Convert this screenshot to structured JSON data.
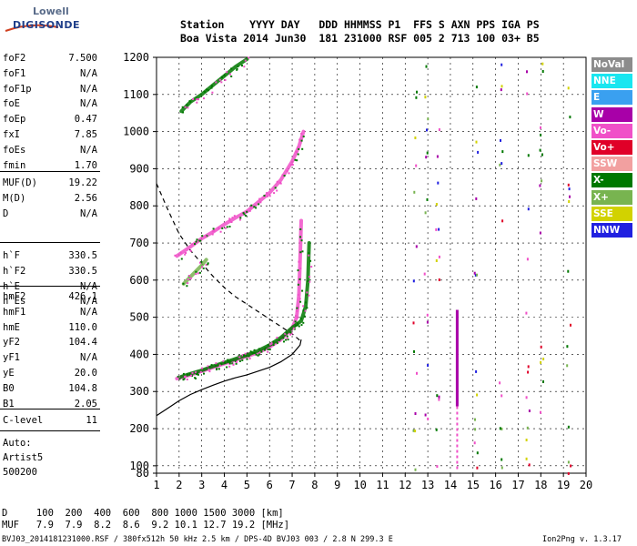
{
  "logo": {
    "line1": "Lowell",
    "line2": "DIGISONDE"
  },
  "header": {
    "row1": "Station    YYYY DAY   DDD HHMMSS P1  FFS S AXN PPS IGA PS",
    "row2": "Boa Vista 2014 Jun30  181 231000 RSF 005 2 713 100 03+ B5"
  },
  "params_group1": [
    {
      "name": "foF2",
      "value": "7.500"
    },
    {
      "name": "foF1",
      "value": "N/A"
    },
    {
      "name": "foF1p",
      "value": "N/A"
    },
    {
      "name": "foE",
      "value": "N/A"
    },
    {
      "name": "foEp",
      "value": "0.47"
    },
    {
      "name": "fxI",
      "value": "7.85"
    },
    {
      "name": "foEs",
      "value": "N/A"
    },
    {
      "name": "fmin",
      "value": "1.70"
    }
  ],
  "params_group2": [
    {
      "name": "MUF(D)",
      "value": "19.22"
    },
    {
      "name": "M(D)",
      "value": "2.56"
    },
    {
      "name": "D",
      "value": "N/A"
    }
  ],
  "params_group3": [
    {
      "name": "h`F",
      "value": "330.5"
    },
    {
      "name": "h`F2",
      "value": "330.5"
    },
    {
      "name": "h`E",
      "value": "N/A"
    },
    {
      "name": "h`Es",
      "value": "N/A"
    }
  ],
  "params_group4": [
    {
      "name": "hmF2",
      "value": "426.1"
    },
    {
      "name": "hmF1",
      "value": "N/A"
    },
    {
      "name": "hmE",
      "value": "110.0"
    },
    {
      "name": "yF2",
      "value": "104.4"
    },
    {
      "name": "yF1",
      "value": "N/A"
    },
    {
      "name": "yE",
      "value": "20.0"
    },
    {
      "name": "B0",
      "value": "104.8"
    },
    {
      "name": "B1",
      "value": "2.05"
    }
  ],
  "params_group5": [
    {
      "name": "C-level",
      "value": "11"
    }
  ],
  "auto": {
    "line1": "Auto:",
    "line2": "Artist5",
    "line3": "500200"
  },
  "legend": [
    {
      "label": "NoVal",
      "color": "#8c8c8c"
    },
    {
      "label": "NNE",
      "color": "#19e6f0"
    },
    {
      "label": "E",
      "color": "#3aa0f0"
    },
    {
      "label": "W",
      "color": "#a800a8"
    },
    {
      "label": "Vo-",
      "color": "#f050c8"
    },
    {
      "label": "Vo+",
      "color": "#e00028"
    },
    {
      "label": "SSW",
      "color": "#f2a0a0"
    },
    {
      "label": "X-",
      "color": "#007800"
    },
    {
      "label": "X+",
      "color": "#78b450"
    },
    {
      "label": "SSE",
      "color": "#d2d200"
    },
    {
      "label": "NNW",
      "color": "#2020e0"
    }
  ],
  "footer": {
    "d_row": "D     100  200  400  600  800 1000 1500 3000 [km]",
    "muf_row": "MUF   7.9  7.9  8.2  8.6  9.2 10.1 12.7 19.2 [MHz]",
    "file_info": "BVJ03_2014181231000.RSF / 380fx512h 50 kHz 2.5 km / DPS-4D BVJ03 003 / 2.8 N 299.3 E",
    "version": "Ion2Png v. 1.3.17"
  },
  "chart_data": {
    "type": "scatter",
    "xlim": [
      1,
      20
    ],
    "ylim": [
      80,
      1200
    ],
    "x_ticks": [
      1,
      2,
      3,
      4,
      5,
      6,
      7,
      8,
      9,
      10,
      11,
      12,
      13,
      14,
      15,
      16,
      17,
      18,
      19,
      20
    ],
    "y_ticks": [
      80,
      100,
      200,
      300,
      400,
      500,
      600,
      700,
      800,
      900,
      1000,
      1100,
      1200
    ],
    "grid": true,
    "series": [
      {
        "kind": "o-trace first hop",
        "color": "#f050c8",
        "points": [
          [
            1.9,
            335
          ],
          [
            2.5,
            345
          ],
          [
            3,
            355
          ],
          [
            3.5,
            365
          ],
          [
            4,
            375
          ],
          [
            4.5,
            385
          ],
          [
            5,
            395
          ],
          [
            5.5,
            405
          ],
          [
            6,
            420
          ],
          [
            6.5,
            440
          ],
          [
            7,
            470
          ],
          [
            7.2,
            500
          ],
          [
            7.3,
            560
          ],
          [
            7.35,
            650
          ],
          [
            7.4,
            760
          ]
        ]
      },
      {
        "kind": "x-trace first hop",
        "color": "#007800",
        "points": [
          [
            2.1,
            340
          ],
          [
            2.5,
            348
          ],
          [
            3,
            357
          ],
          [
            3.5,
            368
          ],
          [
            4,
            378
          ],
          [
            4.5,
            388
          ],
          [
            5,
            398
          ],
          [
            5.5,
            410
          ],
          [
            6,
            425
          ],
          [
            6.5,
            445
          ],
          [
            7,
            472
          ],
          [
            7.4,
            490
          ],
          [
            7.6,
            530
          ],
          [
            7.7,
            600
          ],
          [
            7.75,
            700
          ]
        ]
      },
      {
        "kind": "second hop",
        "color": "#f050c8",
        "points": [
          [
            1.9,
            665
          ],
          [
            2.5,
            690
          ],
          [
            3,
            712
          ],
          [
            3.5,
            730
          ],
          [
            4,
            750
          ],
          [
            4.5,
            768
          ],
          [
            5,
            785
          ],
          [
            5.5,
            810
          ],
          [
            6,
            835
          ],
          [
            6.5,
            870
          ],
          [
            7,
            920
          ],
          [
            7.3,
            960
          ],
          [
            7.5,
            1000
          ]
        ]
      },
      {
        "kind": "third hop",
        "color": "#007800",
        "points": [
          [
            2.1,
            1055
          ],
          [
            2.5,
            1080
          ],
          [
            3,
            1100
          ],
          [
            3.5,
            1125
          ],
          [
            4,
            1150
          ],
          [
            4.5,
            1175
          ],
          [
            5,
            1195
          ]
        ]
      },
      {
        "kind": "oblique echoes",
        "color": "#78b450",
        "points": [
          [
            2.2,
            590
          ],
          [
            2.6,
            615
          ],
          [
            3,
            640
          ],
          [
            3.2,
            655
          ]
        ]
      }
    ],
    "profile_solid": [
      [
        1,
        235
      ],
      [
        1.5,
        255
      ],
      [
        2,
        275
      ],
      [
        2.5,
        292
      ],
      [
        3,
        305
      ],
      [
        3.5,
        317
      ],
      [
        4,
        328
      ],
      [
        4.5,
        337
      ],
      [
        5,
        345
      ],
      [
        5.5,
        355
      ],
      [
        6,
        365
      ],
      [
        6.5,
        380
      ],
      [
        7,
        400
      ],
      [
        7.35,
        425
      ],
      [
        7.4,
        440
      ]
    ],
    "profile_dashed": [
      [
        1,
        860
      ],
      [
        1.5,
        790
      ],
      [
        2,
        725
      ],
      [
        2.5,
        680
      ],
      [
        3,
        645
      ],
      [
        3.5,
        610
      ],
      [
        4,
        580
      ],
      [
        4.5,
        555
      ],
      [
        5,
        535
      ],
      [
        5.5,
        515
      ],
      [
        6,
        495
      ],
      [
        6.5,
        475
      ],
      [
        7,
        455
      ],
      [
        7.3,
        440
      ],
      [
        7.4,
        430
      ]
    ],
    "interference_columns": [
      12.4,
      12.9,
      13.4,
      14.3,
      15.1,
      16.2,
      17.4,
      18.0,
      19.2
    ]
  }
}
